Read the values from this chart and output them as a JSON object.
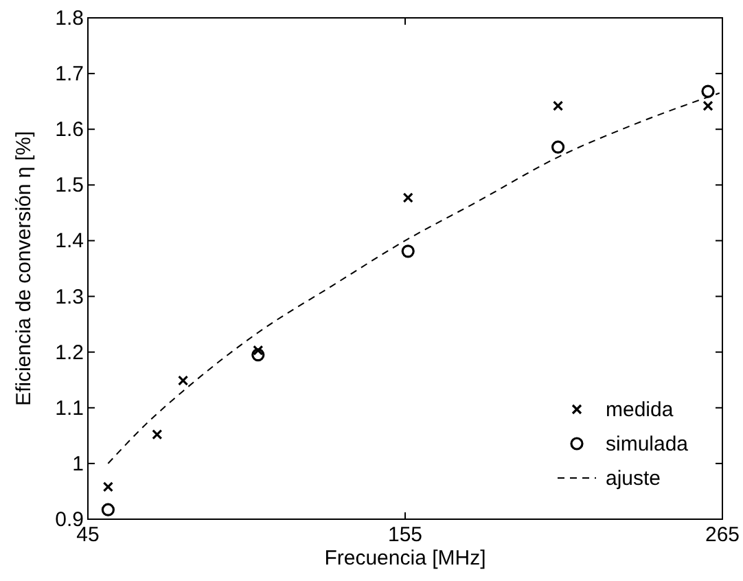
{
  "chart_data": {
    "type": "scatter",
    "xlabel": "Frecuencia [MHz]",
    "ylabel": "Eficiencia de conversión η [%]",
    "xlim": [
      45,
      265
    ],
    "xticks": [
      45,
      155,
      265
    ],
    "ylim": [
      0.9,
      1.8
    ],
    "yticks": [
      0.9,
      1,
      1.1,
      1.2,
      1.3,
      1.4,
      1.5,
      1.6,
      1.7,
      1.8
    ],
    "grid": false,
    "legend": "bottom right",
    "series": [
      {
        "name": "medida",
        "marker": "cross",
        "color": "#000000",
        "x": [
          52,
          69,
          78,
          104,
          156,
          208,
          260
        ],
        "values": [
          0.958,
          1.052,
          1.149,
          1.203,
          1.477,
          1.642,
          1.642
        ]
      },
      {
        "name": "simulada",
        "marker": "circle",
        "color": "#000000",
        "x": [
          52,
          104,
          156,
          208,
          260
        ],
        "values": [
          0.917,
          1.195,
          1.381,
          1.568,
          1.668
        ]
      },
      {
        "name": "ajuste",
        "type": "line",
        "line_style": "dashed",
        "marker": "none",
        "color": "#000000",
        "x": [
          52,
          65,
          78,
          91,
          104,
          130,
          155,
          180,
          208,
          235,
          264
        ],
        "values": [
          1.0,
          1.07,
          1.13,
          1.185,
          1.235,
          1.32,
          1.4,
          1.47,
          1.55,
          1.61,
          1.665
        ]
      }
    ]
  }
}
